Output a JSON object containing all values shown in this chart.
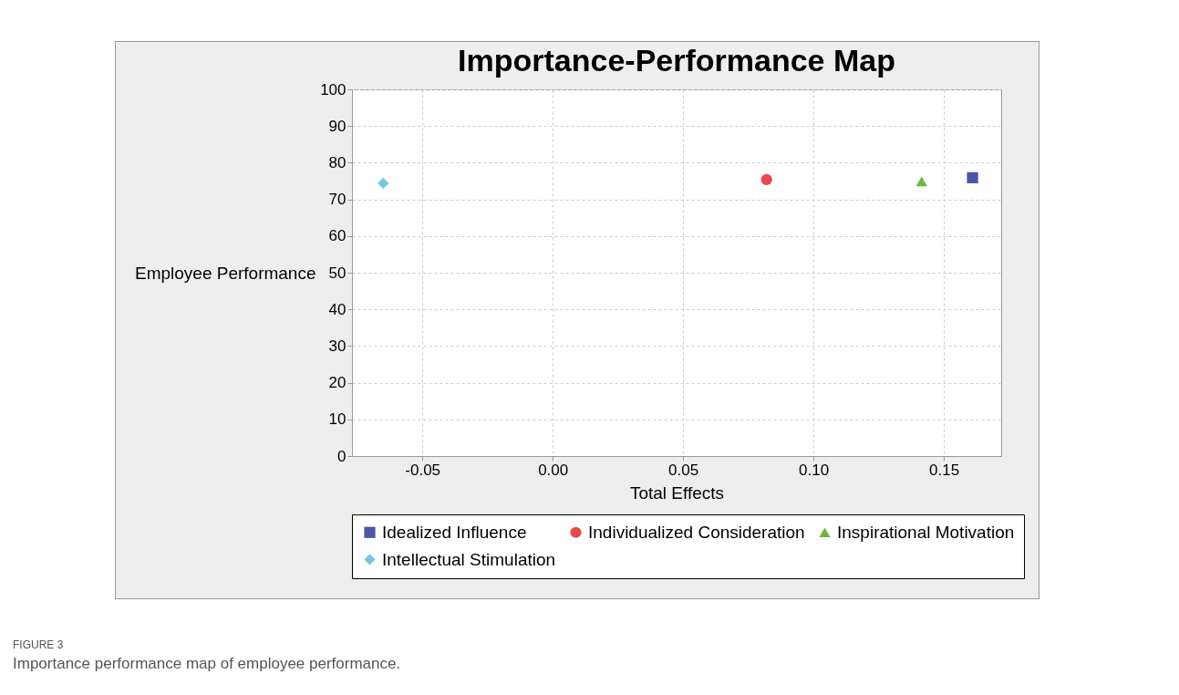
{
  "chart_data": {
    "type": "scatter",
    "title": "Importance-Performance Map",
    "xlabel": "Total Effects",
    "ylabel": "Employee Performance",
    "xlim": [
      -0.077,
      0.172
    ],
    "ylim": [
      0,
      100
    ],
    "xticks": [
      -0.05,
      {
        "value": 0,
        "label": "0.00"
      },
      0.05,
      {
        "value": 0.1,
        "label": "0.10"
      },
      0.15
    ],
    "yticks": [
      0,
      10,
      20,
      30,
      40,
      50,
      60,
      70,
      80,
      90,
      100
    ],
    "grid": true,
    "legend": "bottom",
    "series": [
      {
        "name": "Idealized Influence",
        "color": "#4b55a8",
        "marker": "square",
        "x": [
          0.161
        ],
        "values": [
          75.9
        ]
      },
      {
        "name": "Individualized Consideration",
        "color": "#e8474f",
        "marker": "circle",
        "x": [
          0.082
        ],
        "values": [
          75.4
        ]
      },
      {
        "name": "Inspirational Motivation",
        "color": "#6cb83a",
        "marker": "triangle",
        "x": [
          0.1415
        ],
        "values": [
          74.9
        ]
      },
      {
        "name": "Intellectual Stimulation",
        "color": "#72c8de",
        "marker": "diamond",
        "x": [
          -0.065
        ],
        "values": [
          74.4
        ]
      }
    ],
    "annotations": [
      "FIGURE 3",
      "Importance performance map of employee performance."
    ]
  }
}
